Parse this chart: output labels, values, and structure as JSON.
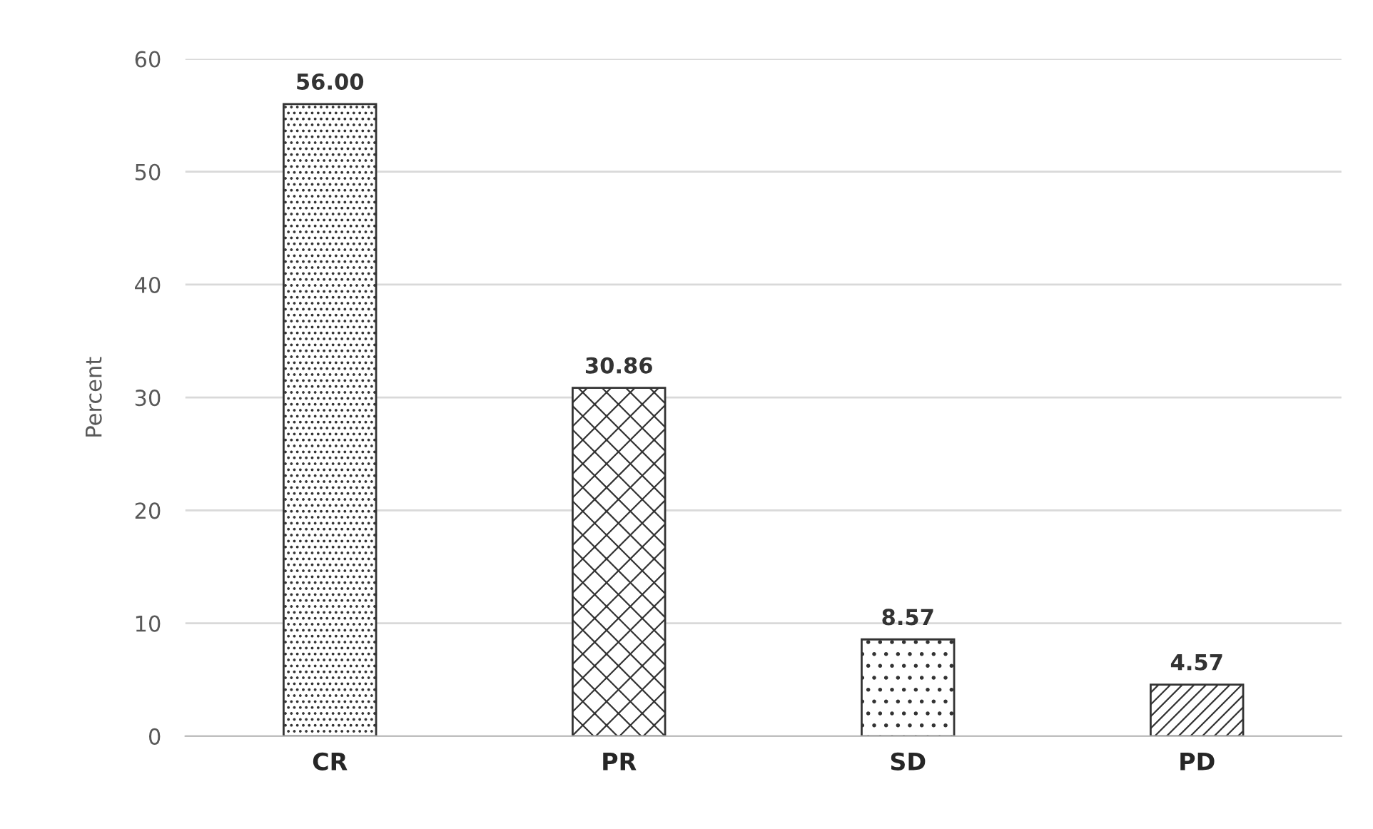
{
  "chart_data": {
    "type": "bar",
    "ylabel": "Percent",
    "categories": [
      "CR",
      "PR",
      "SD",
      "PD"
    ],
    "values": [
      56.0,
      30.86,
      8.57,
      4.57
    ],
    "value_labels": [
      "56.00",
      "30.86",
      "8.57",
      "4.57"
    ],
    "color": "#333333",
    "ylim": [
      0,
      60
    ],
    "yticks": [
      0,
      10,
      20,
      30,
      40,
      50,
      60
    ],
    "grid": "y",
    "legend": false
  }
}
